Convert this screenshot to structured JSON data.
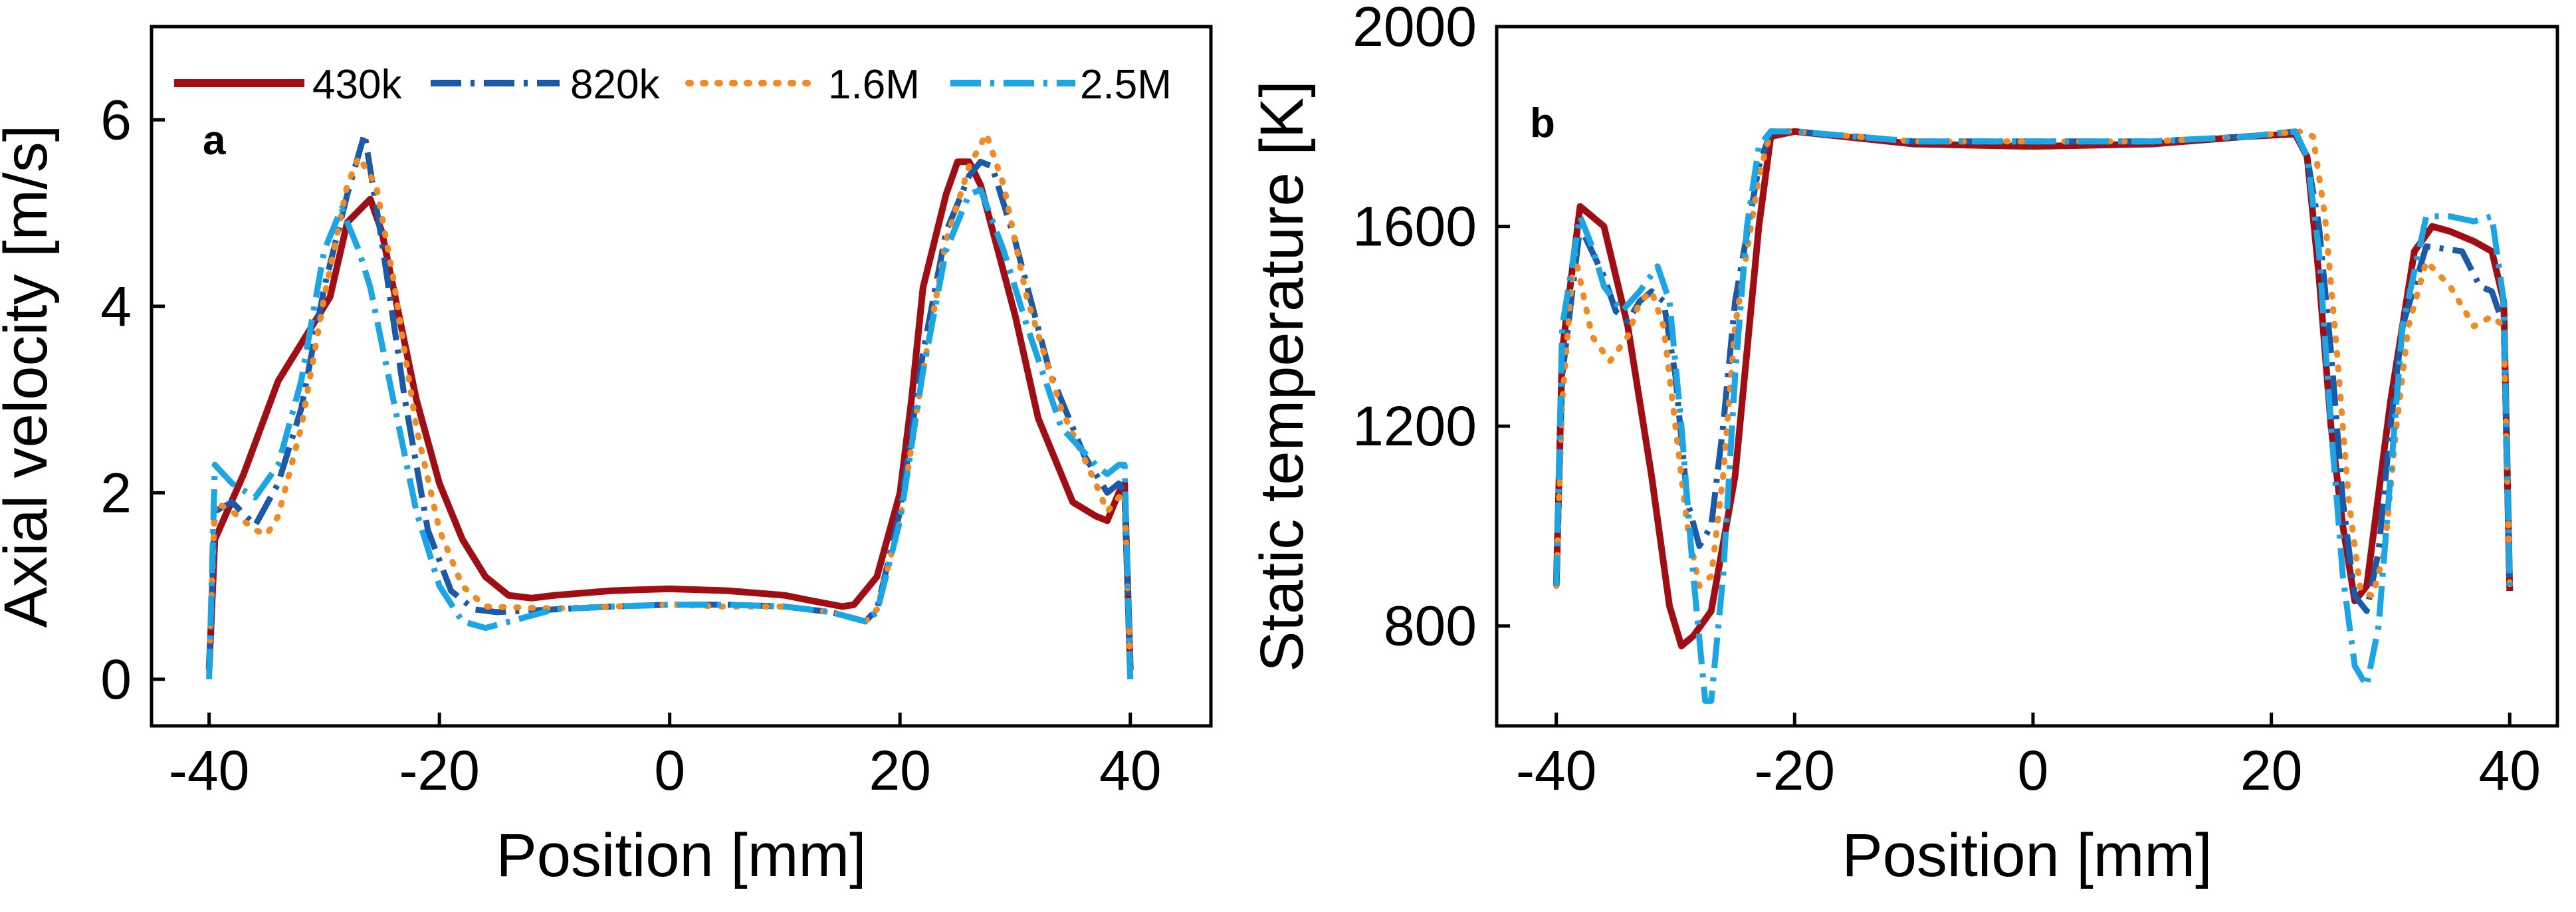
{
  "chart_data": [
    {
      "type": "line",
      "panel_label": "a",
      "xlabel": "Position [mm]",
      "ylabel": "Axial velocity [m/s]",
      "xlim": [
        -45,
        47
      ],
      "ylim": [
        -0.5,
        7
      ],
      "xticks": [
        -40,
        -20,
        0,
        20,
        40
      ],
      "xtick_labels": [
        "-40",
        "-20",
        "0",
        "20",
        "40"
      ],
      "yticks": [
        0,
        2,
        4,
        6
      ],
      "ytick_labels": [
        "0",
        "2",
        "4",
        "6"
      ],
      "legend": {
        "location": "top",
        "entries": [
          "430k",
          "820k",
          "1.6M",
          "2.5M"
        ]
      },
      "series": [
        {
          "name": "430k",
          "color": "#a00d12",
          "style": "solid",
          "x": [
            -40,
            -39.5,
            -37,
            -34,
            -31,
            -29.5,
            -28,
            -26,
            -25,
            -24,
            -22,
            -20,
            -18,
            -16,
            -14,
            -12,
            -10,
            -5,
            0,
            5,
            10,
            12,
            15,
            16,
            18,
            20,
            21,
            22,
            24,
            25,
            26,
            27,
            30,
            32,
            35,
            37,
            38,
            39,
            39.5,
            40
          ],
          "y": [
            0.1,
            1.5,
            2.2,
            3.2,
            3.8,
            4.1,
            4.9,
            5.15,
            4.8,
            4.2,
            3.0,
            2.1,
            1.5,
            1.1,
            0.9,
            0.87,
            0.9,
            0.95,
            0.97,
            0.95,
            0.9,
            0.85,
            0.78,
            0.8,
            1.1,
            2.0,
            3.0,
            4.2,
            5.2,
            5.55,
            5.55,
            5.3,
            3.9,
            2.8,
            1.9,
            1.75,
            1.7,
            2.0,
            2.1,
            0.1
          ]
        },
        {
          "name": "820k",
          "color": "#1a5aa8",
          "style": "dashdot",
          "x": [
            -40,
            -39.5,
            -38,
            -36,
            -34,
            -32,
            -30,
            -28,
            -26.5,
            -25,
            -23,
            -21,
            -19,
            -17,
            -15,
            -10,
            -5,
            0,
            5,
            10,
            14,
            17,
            18,
            20,
            22,
            24,
            26,
            27,
            28,
            30,
            33,
            36,
            38,
            39,
            39.5,
            40
          ],
          "y": [
            0.1,
            1.8,
            1.9,
            1.65,
            2.1,
            2.9,
            4.2,
            5.2,
            5.85,
            4.7,
            3.0,
            1.6,
            0.95,
            0.75,
            0.72,
            0.75,
            0.78,
            0.8,
            0.8,
            0.78,
            0.72,
            0.62,
            0.75,
            1.8,
            3.5,
            4.8,
            5.4,
            5.55,
            5.5,
            4.7,
            3.3,
            2.4,
            2.0,
            2.1,
            2.0,
            0.1
          ]
        },
        {
          "name": "1.6M",
          "color": "#f08a24",
          "style": "dotted",
          "x": [
            -40,
            -39.5,
            -38,
            -36,
            -35,
            -34,
            -32,
            -30,
            -28,
            -27,
            -25.5,
            -24,
            -22,
            -20,
            -18,
            -16,
            -10,
            -5,
            0,
            5,
            10,
            14,
            17,
            18,
            20,
            22,
            24,
            26,
            27.5,
            29,
            31,
            34,
            37,
            38,
            39,
            39.5,
            40
          ],
          "y": [
            0.1,
            1.9,
            1.8,
            1.6,
            1.55,
            1.75,
            2.7,
            4.1,
            5.3,
            5.6,
            5.3,
            4.3,
            2.7,
            1.6,
            1.0,
            0.78,
            0.76,
            0.78,
            0.8,
            0.78,
            0.78,
            0.72,
            0.62,
            0.75,
            1.7,
            3.3,
            4.7,
            5.5,
            5.85,
            5.3,
            4.1,
            2.9,
            2.1,
            1.8,
            1.95,
            2.0,
            0.1
          ]
        },
        {
          "name": "2.5M",
          "color": "#1ba5e4",
          "style": "dashdot",
          "x": [
            -40,
            -39.5,
            -38,
            -36,
            -34,
            -32,
            -30,
            -28.5,
            -27,
            -26,
            -24,
            -22,
            -20,
            -18,
            -16,
            -10,
            -5,
            0,
            5,
            10,
            14,
            17,
            18,
            20,
            22,
            24,
            26,
            27,
            29,
            31,
            34,
            37,
            38,
            39,
            39.5,
            40
          ],
          "y": [
            0.0,
            2.3,
            2.1,
            1.95,
            2.3,
            3.2,
            4.6,
            5.05,
            4.6,
            4.2,
            3.0,
            1.8,
            1.0,
            0.62,
            0.55,
            0.75,
            0.78,
            0.8,
            0.8,
            0.78,
            0.72,
            0.62,
            0.72,
            1.7,
            3.3,
            4.6,
            5.2,
            5.25,
            4.6,
            3.8,
            2.7,
            2.3,
            2.2,
            2.3,
            2.3,
            0.0
          ]
        }
      ]
    },
    {
      "type": "line",
      "panel_label": "b",
      "xlabel": "Position [mm]",
      "ylabel": "Static temperature [K]",
      "xlim": [
        -45,
        44
      ],
      "ylim": [
        600,
        2000
      ],
      "xticks": [
        -40,
        -20,
        0,
        20,
        40
      ],
      "xtick_labels": [
        "-40",
        "-20",
        "0",
        "20",
        "40"
      ],
      "yticks": [
        800,
        1200,
        1600,
        2000
      ],
      "ytick_labels": [
        "800",
        "1200",
        "1600",
        "2000"
      ],
      "series": [
        {
          "name": "430k",
          "color": "#a00d12",
          "style": "solid",
          "x": [
            -40,
            -39.5,
            -38,
            -36,
            -34,
            -32,
            -30.5,
            -29.5,
            -28.5,
            -27,
            -25,
            -23,
            -22,
            -20,
            -10,
            0,
            10,
            18,
            22,
            23,
            24,
            25,
            26,
            27,
            28,
            30,
            32,
            33.5,
            35,
            37,
            38.5,
            39.5,
            40
          ],
          "y": [
            880,
            1350,
            1640,
            1600,
            1400,
            1100,
            840,
            760,
            780,
            830,
            1100,
            1600,
            1780,
            1790,
            1765,
            1760,
            1765,
            1780,
            1785,
            1740,
            1500,
            1200,
            1000,
            850,
            880,
            1250,
            1550,
            1600,
            1590,
            1570,
            1550,
            1450,
            870
          ]
        },
        {
          "name": "820k",
          "color": "#1a5aa8",
          "style": "dashdot",
          "x": [
            -40,
            -39.5,
            -38,
            -36,
            -35,
            -34,
            -33,
            -32,
            -31,
            -30,
            -29,
            -28,
            -27,
            -26,
            -25,
            -23,
            -22,
            -20,
            -10,
            0,
            10,
            18,
            22,
            23,
            24,
            25,
            26,
            27,
            28,
            29,
            30,
            31,
            33,
            36,
            37.5,
            38.5,
            39.5,
            40
          ],
          "y": [
            880,
            1300,
            1600,
            1500,
            1430,
            1410,
            1450,
            1470,
            1450,
            1300,
            1050,
            960,
            1000,
            1200,
            1450,
            1720,
            1790,
            1790,
            1770,
            1770,
            1770,
            1780,
            1790,
            1740,
            1600,
            1350,
            1050,
            860,
            830,
            950,
            1200,
            1400,
            1560,
            1550,
            1480,
            1470,
            1400,
            880
          ]
        },
        {
          "name": "1.6M",
          "color": "#f08a24",
          "style": "dotted",
          "x": [
            -40,
            -39.5,
            -38.5,
            -37,
            -35.5,
            -34,
            -33,
            -32,
            -31,
            -30,
            -29,
            -28,
            -27,
            -26,
            -25,
            -23,
            -22,
            -20,
            -10,
            0,
            10,
            18,
            22.5,
            23.5,
            24.5,
            25.5,
            26.5,
            27.5,
            28.5,
            29.5,
            30.5,
            31.5,
            33,
            35,
            37,
            38.5,
            39.5,
            40
          ],
          "y": [
            880,
            1250,
            1550,
            1380,
            1330,
            1380,
            1450,
            1470,
            1400,
            1200,
            1000,
            880,
            900,
            1100,
            1400,
            1700,
            1790,
            1790,
            1770,
            1770,
            1770,
            1780,
            1790,
            1780,
            1620,
            1350,
            1050,
            870,
            860,
            950,
            1200,
            1400,
            1530,
            1480,
            1400,
            1420,
            1400,
            880
          ]
        },
        {
          "name": "2.5M",
          "color": "#1ba5e4",
          "style": "dashdot",
          "x": [
            -40,
            -39.5,
            -38,
            -37,
            -36,
            -34.5,
            -33,
            -31.5,
            -30.5,
            -29.5,
            -28.5,
            -27.5,
            -27,
            -26,
            -25,
            -24,
            -23,
            -22,
            -20,
            -10,
            0,
            10,
            18,
            22,
            23,
            24,
            25,
            26,
            27,
            28,
            29,
            30,
            31,
            33,
            35,
            37,
            38.5,
            39.5,
            40
          ],
          "y": [
            880,
            1400,
            1620,
            1560,
            1480,
            1430,
            1470,
            1520,
            1450,
            1200,
            900,
            650,
            650,
            900,
            1300,
            1600,
            1760,
            1790,
            1790,
            1770,
            1770,
            1770,
            1780,
            1790,
            1740,
            1550,
            1200,
            900,
            720,
            680,
            800,
            1100,
            1400,
            1620,
            1620,
            1610,
            1620,
            1450,
            880
          ]
        }
      ]
    }
  ]
}
